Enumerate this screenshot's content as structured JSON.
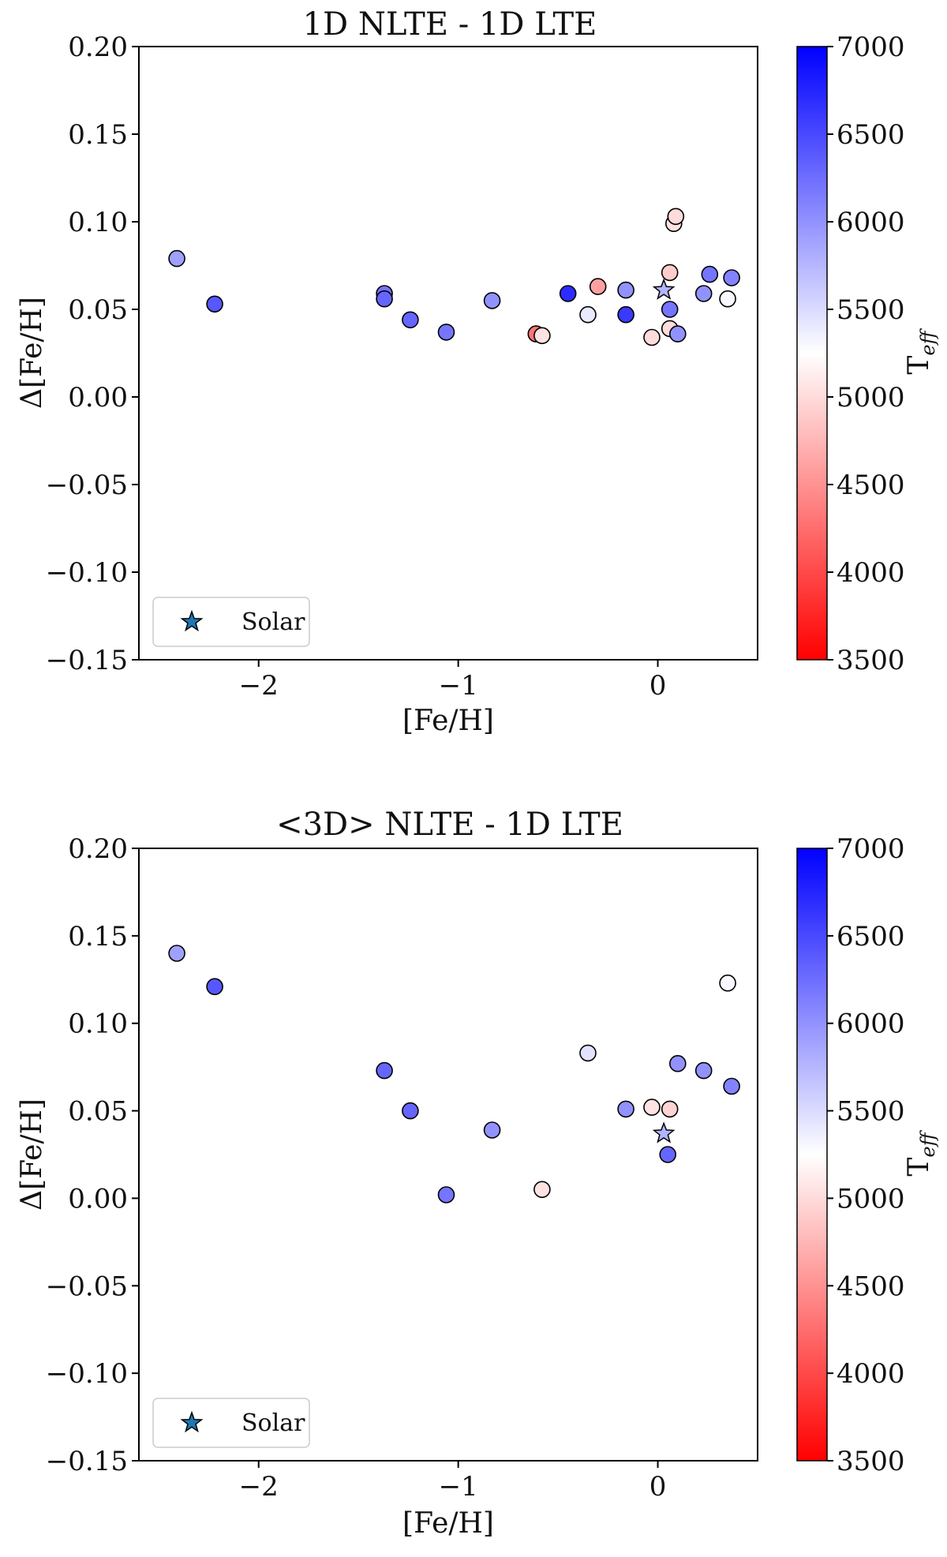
{
  "colorbar": {
    "label_main": "T",
    "label_sub": "eff",
    "min": 3500,
    "max": 7000,
    "ticks": [
      "7000",
      "6500",
      "6000",
      "5500",
      "5000",
      "4500",
      "4000",
      "3500"
    ],
    "colors": {
      "low": "#ff0000",
      "mid": "#ffffff",
      "high": "#0000ff"
    }
  },
  "chart_data": [
    {
      "type": "scatter",
      "title": "1D NLTE - 1D LTE",
      "xlabel": "[Fe/H]",
      "ylabel": "Δ[Fe/H]",
      "xlim": [
        -2.6,
        0.5
      ],
      "ylim": [
        -0.15,
        0.2
      ],
      "xticks": [
        -2,
        -1,
        0
      ],
      "xtick_labels": [
        "−2",
        "−1",
        "0"
      ],
      "yticks": [
        0.2,
        0.15,
        0.1,
        0.05,
        0.0,
        -0.05,
        -0.1,
        -0.15
      ],
      "ytick_labels": [
        "0.20",
        "0.15",
        "0.10",
        "0.05",
        "0.00",
        "−0.05",
        "−0.10",
        "−0.15"
      ],
      "legend": {
        "label": "Solar",
        "location": "lower-left"
      },
      "solar": {
        "x": 0.03,
        "y": 0.061,
        "teff": 5772
      },
      "points": [
        {
          "x": -2.41,
          "y": 0.079,
          "teff": 5900
        },
        {
          "x": -2.22,
          "y": 0.053,
          "teff": 6400
        },
        {
          "x": -1.37,
          "y": 0.059,
          "teff": 6200
        },
        {
          "x": -1.37,
          "y": 0.056,
          "teff": 6300
        },
        {
          "x": -1.24,
          "y": 0.044,
          "teff": 6300
        },
        {
          "x": -1.06,
          "y": 0.037,
          "teff": 6200
        },
        {
          "x": -0.83,
          "y": 0.055,
          "teff": 6000
        },
        {
          "x": -0.61,
          "y": 0.036,
          "teff": 4300
        },
        {
          "x": -0.58,
          "y": 0.035,
          "teff": 5050
        },
        {
          "x": -0.45,
          "y": 0.059,
          "teff": 6700
        },
        {
          "x": -0.35,
          "y": 0.047,
          "teff": 5400
        },
        {
          "x": -0.3,
          "y": 0.063,
          "teff": 4600
        },
        {
          "x": -0.16,
          "y": 0.061,
          "teff": 6000
        },
        {
          "x": -0.16,
          "y": 0.047,
          "teff": 6600
        },
        {
          "x": -0.03,
          "y": 0.034,
          "teff": 5000
        },
        {
          "x": 0.06,
          "y": 0.071,
          "teff": 4900
        },
        {
          "x": 0.08,
          "y": 0.099,
          "teff": 5050
        },
        {
          "x": 0.09,
          "y": 0.103,
          "teff": 5000
        },
        {
          "x": 0.06,
          "y": 0.05,
          "teff": 6200
        },
        {
          "x": 0.06,
          "y": 0.039,
          "teff": 5000
        },
        {
          "x": 0.1,
          "y": 0.036,
          "teff": 6000
        },
        {
          "x": 0.23,
          "y": 0.059,
          "teff": 6000
        },
        {
          "x": 0.26,
          "y": 0.07,
          "teff": 6200
        },
        {
          "x": 0.35,
          "y": 0.056,
          "teff": 5300
        },
        {
          "x": 0.37,
          "y": 0.068,
          "teff": 6100
        }
      ]
    },
    {
      "type": "scatter",
      "title": "<3D> NLTE - 1D LTE",
      "xlabel": "[Fe/H]",
      "ylabel": "Δ[Fe/H]",
      "xlim": [
        -2.6,
        0.5
      ],
      "ylim": [
        -0.15,
        0.2
      ],
      "xticks": [
        -2,
        -1,
        0
      ],
      "xtick_labels": [
        "−2",
        "−1",
        "0"
      ],
      "yticks": [
        0.2,
        0.15,
        0.1,
        0.05,
        0.0,
        -0.05,
        -0.1,
        -0.15
      ],
      "ytick_labels": [
        "0.20",
        "0.15",
        "0.10",
        "0.05",
        "0.00",
        "−0.05",
        "−0.10",
        "−0.15"
      ],
      "legend": {
        "label": "Solar",
        "location": "lower-left"
      },
      "solar": {
        "x": 0.03,
        "y": 0.037,
        "teff": 5772
      },
      "points": [
        {
          "x": -2.41,
          "y": 0.14,
          "teff": 5900
        },
        {
          "x": -2.22,
          "y": 0.121,
          "teff": 6400
        },
        {
          "x": -1.37,
          "y": 0.073,
          "teff": 6300
        },
        {
          "x": -1.24,
          "y": 0.05,
          "teff": 6300
        },
        {
          "x": -1.06,
          "y": 0.002,
          "teff": 6200
        },
        {
          "x": -0.83,
          "y": 0.039,
          "teff": 6000
        },
        {
          "x": -0.58,
          "y": 0.005,
          "teff": 5050
        },
        {
          "x": -0.35,
          "y": 0.083,
          "teff": 5450
        },
        {
          "x": -0.16,
          "y": 0.051,
          "teff": 6000
        },
        {
          "x": -0.03,
          "y": 0.052,
          "teff": 5050
        },
        {
          "x": 0.06,
          "y": 0.051,
          "teff": 4950
        },
        {
          "x": 0.05,
          "y": 0.025,
          "teff": 6300
        },
        {
          "x": 0.1,
          "y": 0.077,
          "teff": 6000
        },
        {
          "x": 0.23,
          "y": 0.073,
          "teff": 6000
        },
        {
          "x": 0.35,
          "y": 0.123,
          "teff": 5300
        },
        {
          "x": 0.37,
          "y": 0.064,
          "teff": 6100
        }
      ]
    }
  ]
}
